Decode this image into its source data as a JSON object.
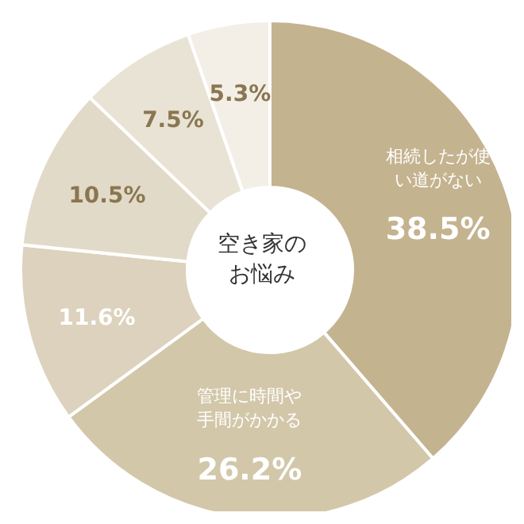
{
  "chart_data": {
    "type": "donut",
    "title": "空き家のお悩み",
    "categories": [
      "相続したが使い道がない",
      "管理に時間や手間がかかる",
      null,
      null,
      null,
      null
    ],
    "values": [
      38.5,
      26.2,
      11.6,
      10.5,
      7.5,
      5.3
    ],
    "value_labels": [
      "38.5%",
      "26.2%",
      "11.6%",
      "10.5%",
      "7.5%",
      "5.3%"
    ],
    "colors": [
      "#c4b38f",
      "#d3c7aa",
      "#dcd2bd",
      "#e2dac8",
      "#e9e3d5",
      "#f3efe6"
    ]
  }
}
